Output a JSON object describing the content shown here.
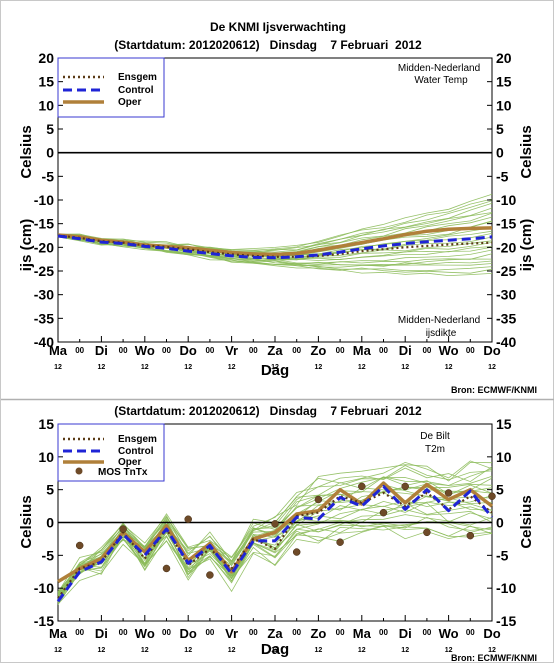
{
  "top_chart": {
    "title_line1": "De KNMI Ijsverwachting",
    "title_line2": "(Startdatum: 2012020612)   Dinsdag    7 Februari  2012",
    "location_label_top": "Midden-Nederland",
    "location_sub_top": "Water Temp",
    "location_label_bottom": "Midden-Nederland",
    "location_sub_bottom": "ijsdikte",
    "ylabel_left_upper": "Celsius",
    "ylabel_left_lower": "ijs (cm)",
    "ylabel_right_upper": "Celsius",
    "ylabel_right_lower": "ijs (cm)",
    "xlabel": "Dag",
    "source": "Bron: ECMWF/KNMI"
  },
  "bottom_chart": {
    "title": "(Startdatum: 2012020612)   Dinsdag    7 Februari  2012",
    "location_label": "De Bilt",
    "location_sub": "T2m",
    "ylabel_left": "Celsius",
    "ylabel_right": "Celsius",
    "xlabel": "Dag",
    "source": "Bron: ECMWF/KNMI"
  },
  "x_ticks": {
    "major": [
      "Ma",
      "Di",
      "Wo",
      "Do",
      "Vr",
      "Za",
      "Zo",
      "Ma",
      "Di",
      "Wo",
      "Do"
    ],
    "minor_symbol": "00",
    "sub_label": "12"
  },
  "colors": {
    "ensgem": "#5a3a16",
    "control": "#1f24d6",
    "oper": "#b0803a",
    "members": "#8cbb5a",
    "mos": "#6e4a28",
    "axis_text": "#000000",
    "legend_text": "#1a1ad0",
    "source_text": "#1a1ad0"
  },
  "chart_data": [
    {
      "type": "line",
      "title": "De KNMI Ijsverwachting",
      "subtitle": "(Startdatum: 2012020612)   Dinsdag    7 Februari  2012",
      "xlabel": "Dag",
      "ylabel": "ijs (cm)",
      "ylim": [
        -40,
        20
      ],
      "yticks": [
        20,
        15,
        10,
        5,
        0,
        -5,
        -10,
        -15,
        -20,
        -25,
        -30,
        -35,
        -40
      ],
      "x": [
        0,
        0.5,
        1,
        1.5,
        2,
        2.5,
        3,
        3.5,
        4,
        4.5,
        5,
        5.5,
        6,
        6.5,
        7,
        7.5,
        8,
        8.5,
        9,
        9.5,
        10
      ],
      "legend": [
        "Ensgem",
        "Control",
        "Oper"
      ],
      "legend_position": "top-left",
      "grid": false,
      "series": [
        {
          "name": "Ensgem",
          "style": "dotted",
          "values": [
            -17.5,
            -18,
            -18.7,
            -19,
            -19.6,
            -19.9,
            -20.4,
            -21,
            -21.5,
            -21.8,
            -22,
            -22,
            -21.8,
            -21.4,
            -20.8,
            -20.4,
            -20,
            -19.7,
            -19.4,
            -19.2,
            -19
          ]
        },
        {
          "name": "Control",
          "style": "dashed",
          "values": [
            -17.6,
            -18.2,
            -18.9,
            -19.2,
            -19.8,
            -20.2,
            -20.8,
            -21.3,
            -21.8,
            -22.1,
            -22.2,
            -22,
            -21.6,
            -21,
            -20.3,
            -19.7,
            -19.2,
            -18.8,
            -18.5,
            -18.2,
            -17.8
          ]
        },
        {
          "name": "Oper",
          "style": "solid",
          "values": [
            -17.4,
            -17.8,
            -18.5,
            -18.9,
            -19.5,
            -19.8,
            -20.1,
            -20.6,
            -21.1,
            -21.4,
            -21.5,
            -21.3,
            -20.6,
            -19.8,
            -19,
            -18.2,
            -17.3,
            -16.6,
            -16.2,
            -16,
            -15.9
          ]
        },
        {
          "name": "",
          "style": "members-upper",
          "values": [
            -17.2,
            -17.5,
            -18.2,
            -18.5,
            -19,
            -19.2,
            -19.5,
            -19.9,
            -20.3,
            -20.5,
            -20.4,
            -19.8,
            -18.7,
            -17.5,
            -16.3,
            -15.2,
            -14,
            -12.8,
            -11.8,
            -10.5,
            -9
          ]
        },
        {
          "name": "",
          "style": "members-lower",
          "values": [
            -17.8,
            -18.4,
            -19.2,
            -19.6,
            -20.3,
            -20.8,
            -21.6,
            -22.3,
            -23,
            -23.4,
            -23.8,
            -24.2,
            -24.6,
            -24.9,
            -25.1,
            -25.3,
            -25.5,
            -25.6,
            -25.7,
            -25.8,
            -25.5
          ]
        }
      ]
    },
    {
      "type": "line",
      "title": "(Startdatum: 2012020612)   Dinsdag    7 Februari  2012",
      "xlabel": "Dag",
      "ylabel": "Celsius",
      "ylim": [
        -15,
        15
      ],
      "yticks": [
        15,
        10,
        5,
        0,
        -5,
        -10,
        -15
      ],
      "x": [
        0,
        0.5,
        1,
        1.5,
        2,
        2.5,
        3,
        3.5,
        4,
        4.5,
        5,
        5.5,
        6,
        6.5,
        7,
        7.5,
        8,
        8.5,
        9,
        9.5,
        10
      ],
      "legend": [
        "Ensgem",
        "Control",
        "Oper",
        "MOS TnTx"
      ],
      "legend_position": "top-left",
      "grid": false,
      "series": [
        {
          "name": "Ensgem",
          "style": "dotted",
          "values": [
            -11.5,
            -7,
            -6,
            -1.5,
            -5.5,
            -1,
            -6.5,
            -4,
            -7,
            -2.5,
            -4,
            1,
            1.5,
            4,
            3,
            4.5,
            2.5,
            4.5,
            2,
            4,
            1.5
          ]
        },
        {
          "name": "Control",
          "style": "dashed",
          "values": [
            -12,
            -7.5,
            -6,
            -1.8,
            -5,
            -1,
            -6.2,
            -3.5,
            -7.8,
            -2.8,
            -2.8,
            0.8,
            0.5,
            3.8,
            2.5,
            5.5,
            2,
            5,
            1.8,
            4.8,
            0.8
          ]
        },
        {
          "name": "Oper",
          "style": "solid",
          "values": [
            -9,
            -7,
            -5.5,
            -1.5,
            -4.5,
            -0.5,
            -5.8,
            -3.2,
            -7.5,
            -2.5,
            -1.5,
            1.3,
            1.8,
            5,
            2.8,
            6,
            3,
            5.8,
            3.5,
            5,
            2.5
          ]
        },
        {
          "name": "",
          "style": "members-upper",
          "values": [
            -10.5,
            -6.2,
            -4.5,
            -0.8,
            -3.8,
            0.5,
            -4.5,
            -2.5,
            -5.2,
            0,
            0.5,
            4,
            6.5,
            7,
            7.5,
            8,
            8.5,
            8,
            7.5,
            8.5,
            9
          ]
        },
        {
          "name": "",
          "style": "members-lower",
          "values": [
            -12.5,
            -8,
            -7,
            -2.5,
            -6.5,
            -2,
            -8,
            -5,
            -9.5,
            -4.5,
            -6,
            -2.5,
            -3,
            -2,
            -2,
            -1,
            -1.5,
            -1,
            -2,
            -2,
            -2.5
          ]
        },
        {
          "name": "MOS TnTx",
          "style": "markers",
          "points": [
            [
              0.5,
              -3.5
            ],
            [
              1.5,
              -1
            ],
            [
              2.5,
              -7
            ],
            [
              3,
              0.5
            ],
            [
              3.5,
              -8
            ],
            [
              5,
              -0.2
            ],
            [
              5.5,
              -4.5
            ],
            [
              6,
              3.5
            ],
            [
              6.5,
              -3
            ],
            [
              7,
              5.5
            ],
            [
              7.5,
              1.5
            ],
            [
              8,
              5.5
            ],
            [
              8.5,
              -1.5
            ],
            [
              9,
              4.5
            ],
            [
              9.5,
              -2
            ],
            [
              10,
              4
            ]
          ]
        }
      ]
    }
  ]
}
